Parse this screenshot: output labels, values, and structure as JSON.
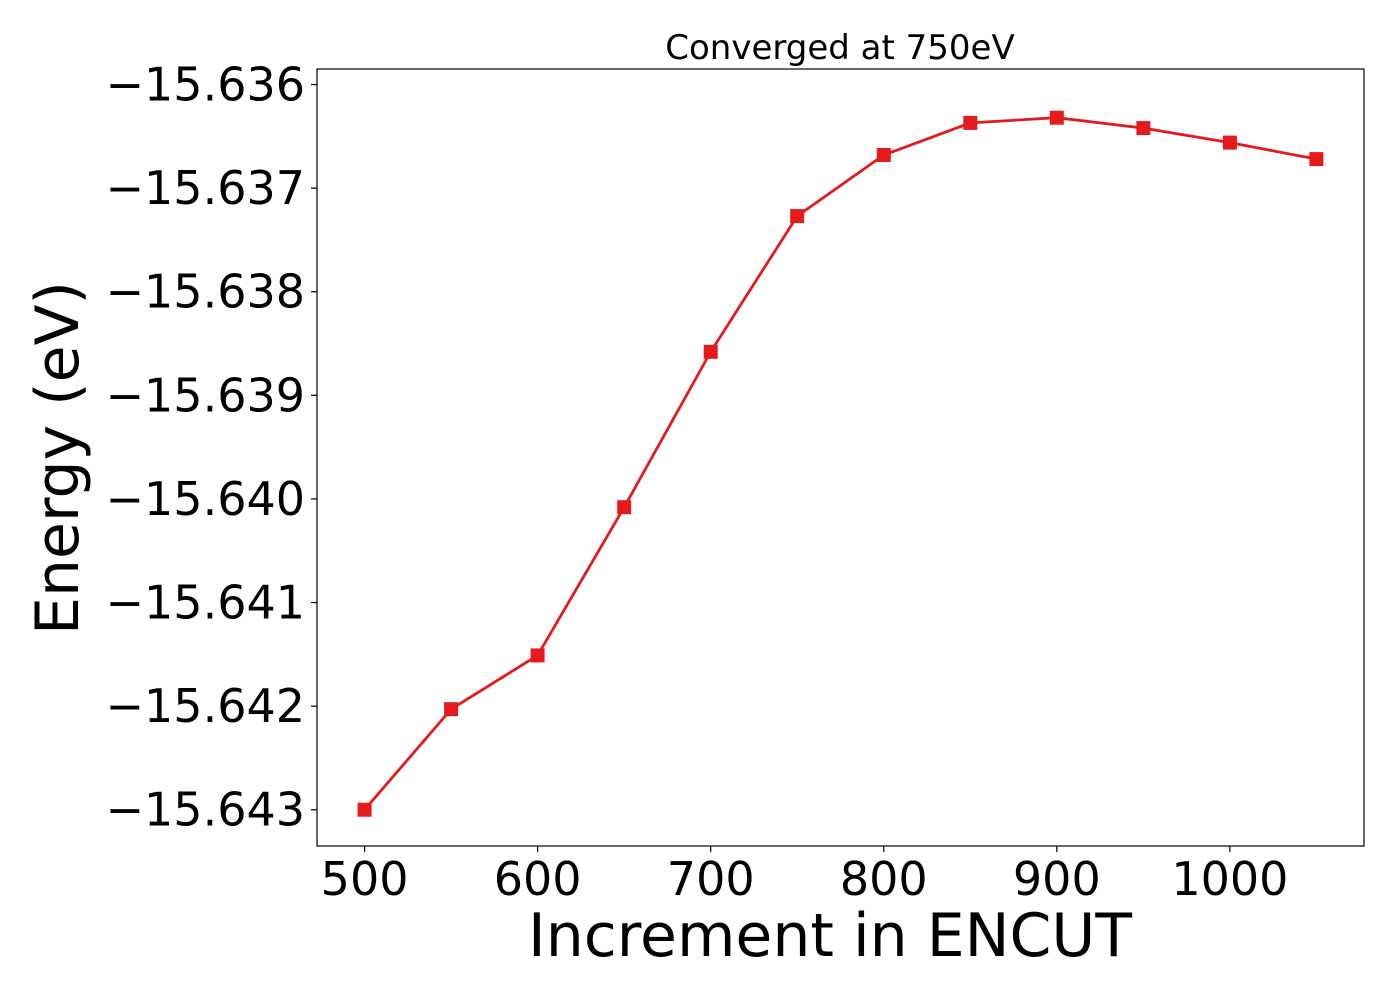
{
  "chart_data": {
    "type": "line",
    "title": "Converged at 750eV",
    "xlabel": "Increment in ENCUT",
    "ylabel": "Energy (eV)",
    "xlim": [
      472.5,
      1077.5
    ],
    "ylim": [
      -15.64335,
      -15.63585
    ],
    "x_ticks": [
      500,
      600,
      700,
      800,
      900,
      1000
    ],
    "x_tick_labels": [
      "500",
      "600",
      "700",
      "800",
      "900",
      "1000"
    ],
    "y_ticks": [
      -15.636,
      -15.637,
      -15.638,
      -15.639,
      -15.64,
      -15.641,
      -15.642,
      -15.643
    ],
    "y_tick_labels": [
      "−15.636",
      "−15.637",
      "−15.638",
      "−15.639",
      "−15.640",
      "−15.641",
      "−15.642",
      "−15.643"
    ],
    "grid": false,
    "series": [
      {
        "color": "#e41a1c",
        "marker": "square",
        "x": [
          500,
          550,
          600,
          650,
          700,
          750,
          800,
          850,
          900,
          950,
          1000,
          1050
        ],
        "y": [
          -15.643,
          -15.64203,
          -15.64151,
          -15.64008,
          -15.63858,
          -15.63727,
          -15.63668,
          -15.63637,
          -15.63632,
          -15.63642,
          -15.63656,
          -15.63672
        ]
      }
    ]
  }
}
